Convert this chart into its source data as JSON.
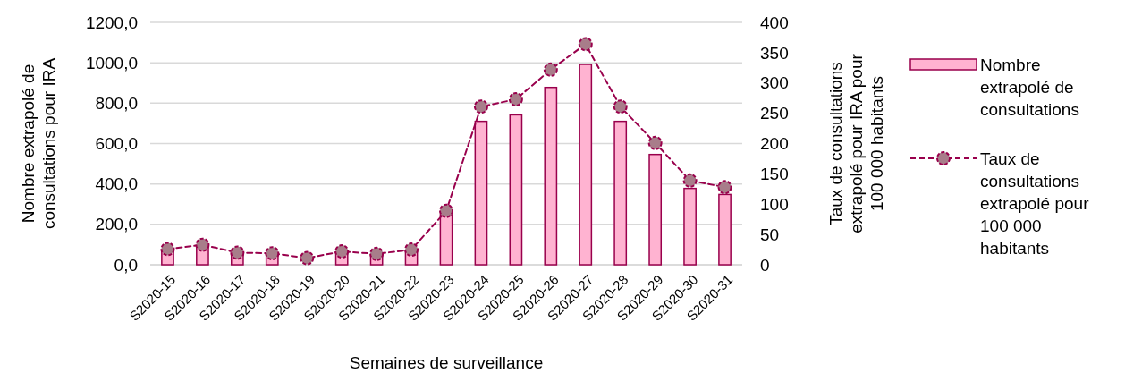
{
  "chart_data": {
    "type": "bar",
    "categories": [
      "S2020-15",
      "S2020-16",
      "S2020-17",
      "S2020-18",
      "S2020-19",
      "S2020-20",
      "S2020-21",
      "S2020-22",
      "S2020-23",
      "S2020-24",
      "S2020-25",
      "S2020-26",
      "S2020-27",
      "S2020-28",
      "S2020-29",
      "S2020-30",
      "S2020-31"
    ],
    "series": [
      {
        "name": "Nombre extrapolé de consultations",
        "color": "#ffb3d1",
        "values": [
          70,
          91,
          54,
          52,
          null,
          60,
          48,
          67,
          248,
          710,
          742,
          878,
          992,
          710,
          546,
          378,
          348
        ]
      },
      {
        "name": "Taux de consultations extrapolé pour 100 000 habitants",
        "type": "line",
        "axis": "y2",
        "color": "#99004c",
        "marker": "circle",
        "line_style": "dashed",
        "values": [
          26,
          33,
          20,
          19,
          11,
          22,
          18,
          25,
          89,
          261,
          273,
          322,
          364,
          261,
          201,
          139,
          128
        ]
      }
    ],
    "xlabel": "Semaines de surveillance",
    "ylabel": "Nombre extrapolé de consultations pour IRA",
    "y2label": "Taux de consultations extrapolé pour IRA pour 100 000 habitants",
    "ylim": [
      0,
      1200
    ],
    "yticks": [
      {
        "value": 0,
        "label": "0,0"
      },
      {
        "value": 200,
        "label": "200,0"
      },
      {
        "value": 400,
        "label": "400,0"
      },
      {
        "value": 600,
        "label": "600,0"
      },
      {
        "value": 800,
        "label": "800,0"
      },
      {
        "value": 1000,
        "label": "1000,0"
      },
      {
        "value": 1200,
        "label": "1200,0"
      }
    ],
    "y2lim": [
      0,
      400
    ],
    "y2ticks": [
      0,
      50,
      100,
      150,
      200,
      250,
      300,
      350,
      400
    ],
    "grid": "y",
    "legend": "right"
  }
}
